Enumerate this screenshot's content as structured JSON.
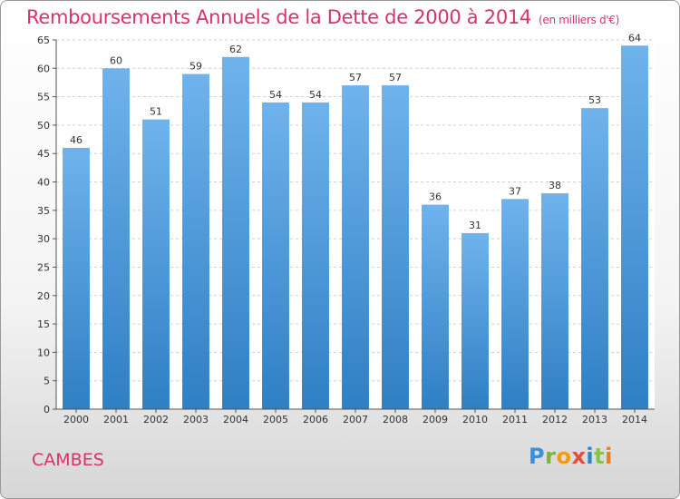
{
  "chart_data": {
    "type": "bar",
    "title": "Remboursements Annuels de la Dette de 2000 à 2014",
    "unit_note": "(en milliers d'€)",
    "categories": [
      "2000",
      "2001",
      "2002",
      "2003",
      "2004",
      "2005",
      "2006",
      "2007",
      "2008",
      "2009",
      "2010",
      "2011",
      "2012",
      "2013",
      "2014"
    ],
    "values": [
      46,
      60,
      51,
      59,
      62,
      54,
      54,
      57,
      57,
      36,
      31,
      37,
      38,
      53,
      64
    ],
    "ylim": [
      0,
      65
    ],
    "yticks": [
      0,
      5,
      10,
      15,
      20,
      25,
      30,
      35,
      40,
      45,
      50,
      55,
      60,
      65
    ],
    "xlabel": "",
    "ylabel": "",
    "grid": "horizontal dashed",
    "bar_color_top": "#6fb3ec",
    "bar_color_bottom": "#2f7fc4"
  },
  "footer": {
    "commune": "CAMBES",
    "logo": "Proxiti"
  },
  "colors": {
    "title": "#d6336c",
    "commune": "#d6336c"
  }
}
